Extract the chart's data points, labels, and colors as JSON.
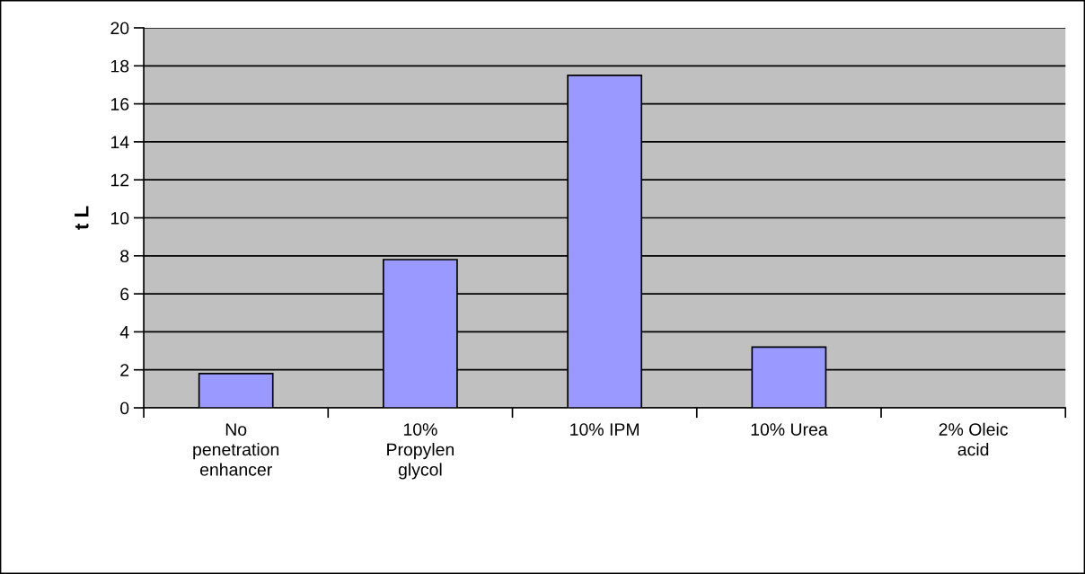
{
  "chart_data": {
    "type": "bar",
    "ylabel": "t L",
    "categories": [
      "No\npenetration\nenhancer",
      "10%\nPropylen\nglycol",
      "10% IPM",
      "10% Urea",
      "2% Oleic\nacid"
    ],
    "values": [
      1.8,
      7.8,
      17.5,
      3.2,
      0
    ],
    "color": "#9999ff",
    "ylim": [
      0,
      20
    ],
    "yticks": [
      0,
      2,
      4,
      6,
      8,
      10,
      12,
      14,
      16,
      18,
      20
    ],
    "grid": "y",
    "legend": false
  }
}
